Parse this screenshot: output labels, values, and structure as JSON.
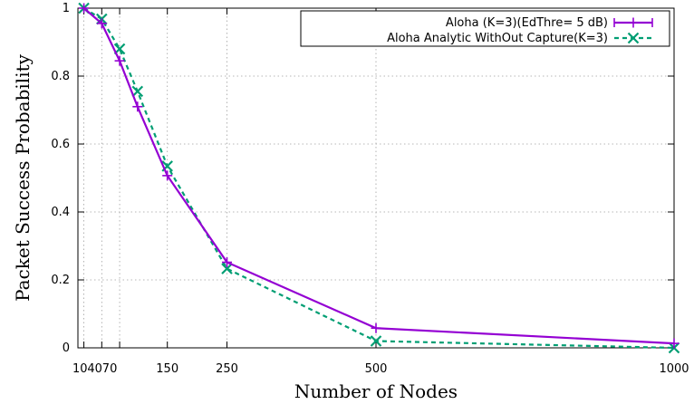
{
  "chart_data": {
    "type": "line",
    "title": "",
    "xlabel": "Number of Nodes",
    "ylabel": "Packet Success Probability",
    "xlim": [
      0,
      1000
    ],
    "ylim": [
      0,
      1
    ],
    "grid": true,
    "legend_position": "top-right",
    "x_ticks": [
      10,
      40,
      70,
      150,
      250,
      500,
      1000
    ],
    "x_tick_labels": [
      "10",
      "40",
      "70",
      "150",
      "250",
      "500",
      "1000"
    ],
    "y_ticks": [
      0,
      0.2,
      0.4,
      0.6,
      0.8,
      1
    ],
    "y_tick_labels": [
      "0",
      "0.2",
      "0.4",
      "0.6",
      "0.8",
      "1"
    ],
    "series": [
      {
        "name": "Aloha (K=3)(EdThre= 5 dB)",
        "color": "#9400d3",
        "marker": "plus",
        "line_style": "solid",
        "x": [
          10,
          40,
          70,
          100,
          150,
          250,
          500,
          1000
        ],
        "y": [
          1.0,
          0.955,
          0.845,
          0.71,
          0.507,
          0.252,
          0.058,
          0.013
        ]
      },
      {
        "name": "Aloha Analytic WithOut Capture(K=3)",
        "color": "#009e73",
        "marker": "cross",
        "line_style": "dashed",
        "x": [
          10,
          40,
          70,
          100,
          150,
          250,
          500,
          1000
        ],
        "y": [
          1.0,
          0.968,
          0.88,
          0.755,
          0.535,
          0.233,
          0.02,
          0.0
        ]
      }
    ]
  }
}
